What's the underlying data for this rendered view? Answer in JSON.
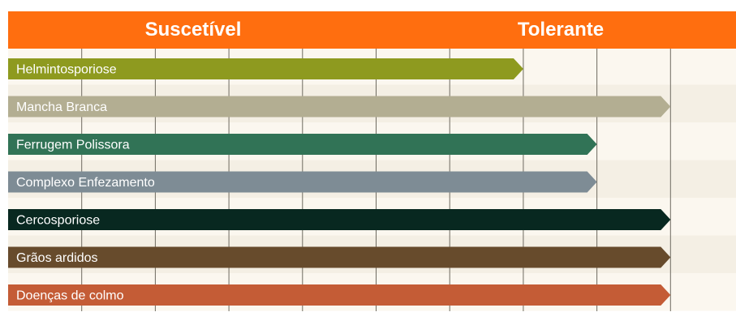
{
  "chart_data": {
    "type": "bar",
    "orientation": "horizontal",
    "header": {
      "left_label": "Suscetível",
      "right_label": "Tolerante"
    },
    "scale": {
      "min": 0,
      "max": 9,
      "unit_note": ""
    },
    "categories": [
      "Helmintosporiose",
      "Mancha Branca",
      "Ferrugem Polissora",
      "Complexo Enfezamento",
      "Cercosporiose",
      "Grãos ardidos",
      "Doenças de colmo"
    ],
    "values": [
      7,
      9,
      8,
      8,
      9,
      9,
      9
    ],
    "colors": [
      "#8E9A1F",
      "#B3AE92",
      "#317356",
      "#7E8C95",
      "#082820",
      "#674B2C",
      "#C45C36"
    ],
    "label_colors": [
      "#ffffff",
      "#ffffff",
      "#ffffff",
      "#ffffff",
      "#ffffff",
      "#ffffff",
      "#ffffff"
    ],
    "grid": true,
    "legend": "none"
  },
  "style": {
    "header_color": "#FF6E0F",
    "band_color_light": "#FBF7EF",
    "band_color_dark": "#F4EFE4",
    "gridline_color": "#6E6A60"
  }
}
